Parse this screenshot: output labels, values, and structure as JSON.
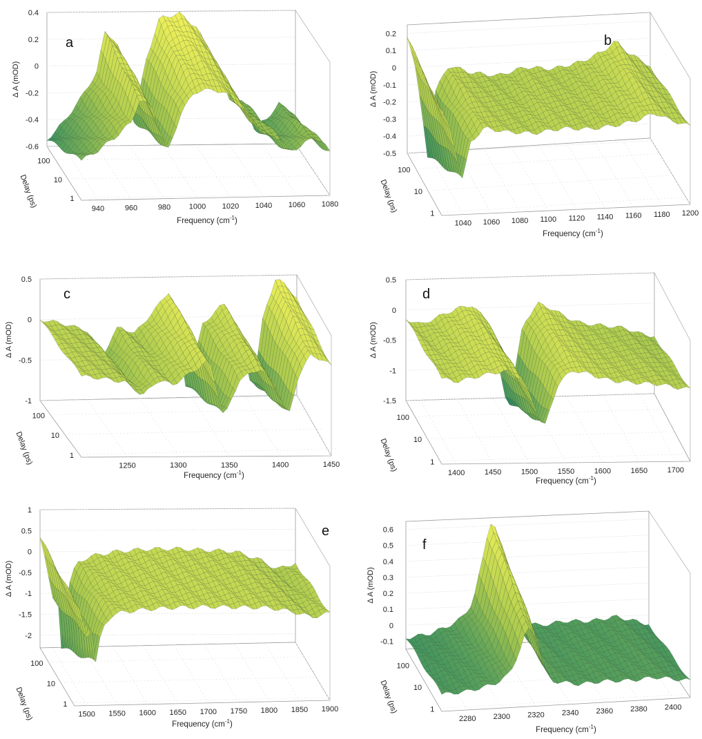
{
  "chart_data": [
    {
      "panel": "a",
      "type": "surface",
      "zlabel": "Δ A (mOD)",
      "xlabel_main": "Frequency (cm",
      "xlabel_sup": "-1",
      "xlabel_end": ")",
      "dlabel": "Delay (ps)",
      "zticks": [
        "0.4",
        "0.2",
        "0",
        "-0.2",
        "-0.4",
        "-0.6"
      ],
      "zlim": [
        -0.6,
        0.4
      ],
      "xticks": [
        "940",
        "960",
        "980",
        "1000",
        "1020",
        "1040",
        "1060",
        "1080"
      ],
      "xlim": [
        930,
        1080
      ],
      "delay_ticks": [
        "100",
        "10",
        "1"
      ],
      "profile": [
        [
          930,
          -0.55
        ],
        [
          940,
          -0.42
        ],
        [
          950,
          -0.25
        ],
        [
          960,
          -0.05
        ],
        [
          965,
          0.25
        ],
        [
          972,
          0.18
        ],
        [
          982,
          -0.45
        ],
        [
          990,
          0.05
        ],
        [
          998,
          0.35
        ],
        [
          1010,
          0.38
        ],
        [
          1020,
          0.28
        ],
        [
          1030,
          0.05
        ],
        [
          1040,
          -0.25
        ],
        [
          1050,
          -0.3
        ],
        [
          1055,
          -0.48
        ],
        [
          1062,
          -0.42
        ],
        [
          1070,
          -0.3
        ],
        [
          1075,
          -0.35
        ],
        [
          1080,
          -0.5
        ]
      ]
    },
    {
      "panel": "b",
      "type": "surface",
      "zlabel": "Δ A (mOD)",
      "xlabel_main": "Frequency (cm",
      "xlabel_sup": "-1",
      "xlabel_end": ")",
      "dlabel": "Delay (ps)",
      "zticks": [
        "0.2",
        "0.1",
        "0",
        "-0.1",
        "-0.2",
        "-0.3",
        "-0.4",
        "-0.5"
      ],
      "zlim": [
        -0.5,
        0.25
      ],
      "xticks": [
        "1040",
        "1060",
        "1080",
        "1100",
        "1120",
        "1140",
        "1160",
        "1180",
        "1200"
      ],
      "xlim": [
        1025,
        1200
      ],
      "delay_ticks": [
        "100",
        "10",
        "1"
      ],
      "profile": [
        [
          1025,
          0.18
        ],
        [
          1030,
          0.05
        ],
        [
          1035,
          -0.25
        ],
        [
          1040,
          -0.55
        ],
        [
          1045,
          -0.15
        ],
        [
          1055,
          0.0
        ],
        [
          1070,
          -0.05
        ],
        [
          1090,
          -0.08
        ],
        [
          1110,
          -0.04
        ],
        [
          1130,
          -0.06
        ],
        [
          1150,
          -0.03
        ],
        [
          1165,
          0.02
        ],
        [
          1175,
          0.08
        ],
        [
          1185,
          0.0
        ],
        [
          1195,
          -0.05
        ],
        [
          1200,
          -0.08
        ]
      ]
    },
    {
      "panel": "c",
      "type": "surface",
      "zlabel": "Δ A (mOD)",
      "xlabel_main": "Frequency (cm",
      "xlabel_sup": "-1",
      "xlabel_end": ")",
      "dlabel": "Delay (ps)",
      "zticks": [
        "0.5",
        "0",
        "-0.5",
        "-1"
      ],
      "zlim": [
        -1,
        0.5
      ],
      "xticks": [
        "1250",
        "1300",
        "1350",
        "1400",
        "1450"
      ],
      "xlim": [
        1205,
        1450
      ],
      "delay_ticks": [
        "100",
        "10",
        "1"
      ],
      "profile": [
        [
          1205,
          0.0
        ],
        [
          1225,
          -0.05
        ],
        [
          1250,
          -0.15
        ],
        [
          1265,
          -0.45
        ],
        [
          1280,
          -0.1
        ],
        [
          1295,
          -0.2
        ],
        [
          1315,
          0.1
        ],
        [
          1330,
          0.35
        ],
        [
          1345,
          -0.95
        ],
        [
          1360,
          -0.1
        ],
        [
          1380,
          0.15
        ],
        [
          1395,
          -0.2
        ],
        [
          1408,
          -0.95
        ],
        [
          1418,
          0.0
        ],
        [
          1430,
          0.45
        ],
        [
          1440,
          0.35
        ],
        [
          1450,
          0.2
        ]
      ]
    },
    {
      "panel": "d",
      "type": "surface",
      "zlabel": "Δ A (mOD)",
      "xlabel_main": "Frequency (cm",
      "xlabel_sup": "-1",
      "xlabel_end": ")",
      "dlabel": "Delay (ps)",
      "zticks": [
        "0.5",
        "0",
        "-0.5",
        "-1",
        "-1.5"
      ],
      "zlim": [
        -1.5,
        0.5
      ],
      "xticks": [
        "1400",
        "1450",
        "1500",
        "1550",
        "1600",
        "1650",
        "1700"
      ],
      "xlim": [
        1380,
        1720
      ],
      "delay_ticks": [
        "100",
        "10",
        "1"
      ],
      "profile": [
        [
          1380,
          -0.15
        ],
        [
          1400,
          -0.25
        ],
        [
          1430,
          -0.1
        ],
        [
          1450,
          0.0
        ],
        [
          1470,
          0.05
        ],
        [
          1490,
          -0.2
        ],
        [
          1505,
          -0.9
        ],
        [
          1520,
          -1.7
        ],
        [
          1540,
          -0.3
        ],
        [
          1560,
          0.05
        ],
        [
          1580,
          -0.05
        ],
        [
          1600,
          -0.2
        ],
        [
          1620,
          -0.3
        ],
        [
          1650,
          -0.35
        ],
        [
          1680,
          -0.4
        ],
        [
          1700,
          -0.5
        ],
        [
          1720,
          -0.55
        ]
      ]
    },
    {
      "panel": "e",
      "type": "surface",
      "zlabel": "Δ A (mOD)",
      "xlabel_main": "Frequency (cm",
      "xlabel_sup": "-1",
      "xlabel_end": ")",
      "dlabel": "Delay (ps)",
      "zticks": [
        "1",
        "0.5",
        "0",
        "-0.5",
        "-1",
        "-1.5",
        "-2"
      ],
      "zlim": [
        -2.3,
        1
      ],
      "xticks": [
        "1500",
        "1550",
        "1600",
        "1650",
        "1700",
        "1750",
        "1800",
        "1850",
        "1900"
      ],
      "xlim": [
        1480,
        1900
      ],
      "delay_ticks": [
        "100",
        "10",
        "1"
      ],
      "profile": [
        [
          1480,
          0.35
        ],
        [
          1490,
          -0.2
        ],
        [
          1500,
          -1.2
        ],
        [
          1510,
          -0.8
        ],
        [
          1515,
          -2.3
        ],
        [
          1525,
          -0.9
        ],
        [
          1540,
          -0.3
        ],
        [
          1560,
          -0.15
        ],
        [
          1600,
          -0.05
        ],
        [
          1650,
          0.0
        ],
        [
          1700,
          0.0
        ],
        [
          1750,
          -0.05
        ],
        [
          1800,
          -0.1
        ],
        [
          1840,
          -0.3
        ],
        [
          1870,
          -0.55
        ],
        [
          1900,
          -0.4
        ]
      ]
    },
    {
      "panel": "f",
      "type": "surface",
      "zlabel": "Δ A (mOD)",
      "xlabel_main": "Frequency (cm",
      "xlabel_sup": "-1",
      "xlabel_end": ")",
      "dlabel": "Delay (ps)",
      "zticks": [
        "0.6",
        "0.5",
        "0.4",
        "0.3",
        "0.2",
        "0.1",
        "0",
        "-0.1"
      ],
      "zlim": [
        -0.15,
        0.65
      ],
      "xticks": [
        "2280",
        "2300",
        "2320",
        "2340",
        "2360",
        "2380",
        "2400"
      ],
      "xlim": [
        2265,
        2410
      ],
      "delay_ticks": [
        "100",
        "10",
        "1"
      ],
      "profile": [
        [
          2265,
          -0.08
        ],
        [
          2280,
          -0.06
        ],
        [
          2295,
          0.0
        ],
        [
          2300,
          0.05
        ],
        [
          2305,
          0.12
        ],
        [
          2310,
          0.35
        ],
        [
          2315,
          0.62
        ],
        [
          2320,
          0.55
        ],
        [
          2325,
          0.15
        ],
        [
          2330,
          0.0
        ],
        [
          2345,
          -0.05
        ],
        [
          2360,
          -0.03
        ],
        [
          2375,
          -0.04
        ],
        [
          2390,
          -0.02
        ],
        [
          2400,
          -0.05
        ],
        [
          2410,
          -0.08
        ]
      ]
    }
  ]
}
